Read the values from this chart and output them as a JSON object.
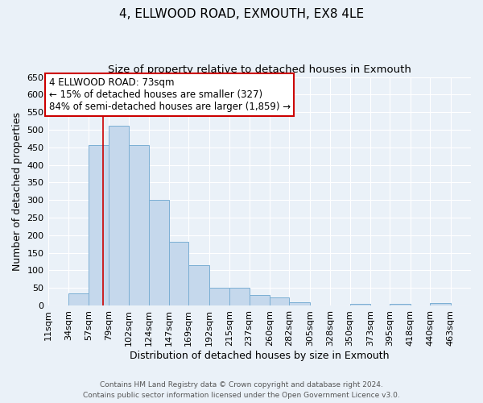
{
  "title": "4, ELLWOOD ROAD, EXMOUTH, EX8 4LE",
  "subtitle": "Size of property relative to detached houses in Exmouth",
  "xlabel": "Distribution of detached houses by size in Exmouth",
  "ylabel": "Number of detached properties",
  "bin_labels": [
    "11sqm",
    "34sqm",
    "57sqm",
    "79sqm",
    "102sqm",
    "124sqm",
    "147sqm",
    "169sqm",
    "192sqm",
    "215sqm",
    "237sqm",
    "260sqm",
    "282sqm",
    "305sqm",
    "328sqm",
    "350sqm",
    "373sqm",
    "395sqm",
    "418sqm",
    "440sqm",
    "463sqm"
  ],
  "bin_edges": [
    11,
    34,
    57,
    79,
    102,
    124,
    147,
    169,
    192,
    215,
    237,
    260,
    282,
    305,
    328,
    350,
    373,
    395,
    418,
    440,
    463
  ],
  "bar_heights": [
    0,
    35,
    457,
    511,
    457,
    300,
    181,
    114,
    50,
    50,
    29,
    22,
    10,
    0,
    0,
    5,
    0,
    5,
    0,
    7
  ],
  "bar_color": "#c5d8ec",
  "bar_edge_color": "#7bafd4",
  "vline_x": 73,
  "vline_color": "#cc0000",
  "ylim": [
    0,
    650
  ],
  "yticks": [
    0,
    50,
    100,
    150,
    200,
    250,
    300,
    350,
    400,
    450,
    500,
    550,
    600,
    650
  ],
  "annotation_title": "4 ELLWOOD ROAD: 73sqm",
  "annotation_line1": "← 15% of detached houses are smaller (327)",
  "annotation_line2": "84% of semi-detached houses are larger (1,859) →",
  "annotation_box_color": "#ffffff",
  "annotation_box_edge": "#cc0000",
  "footer_line1": "Contains HM Land Registry data © Crown copyright and database right 2024.",
  "footer_line2": "Contains public sector information licensed under the Open Government Licence v3.0.",
  "background_color": "#eaf1f8",
  "plot_bg_color": "#eaf1f8",
  "grid_color": "#ffffff",
  "title_fontsize": 11,
  "subtitle_fontsize": 9.5,
  "annotation_fontsize": 8.5,
  "axis_label_fontsize": 9,
  "tick_fontsize": 8,
  "footer_fontsize": 6.5
}
